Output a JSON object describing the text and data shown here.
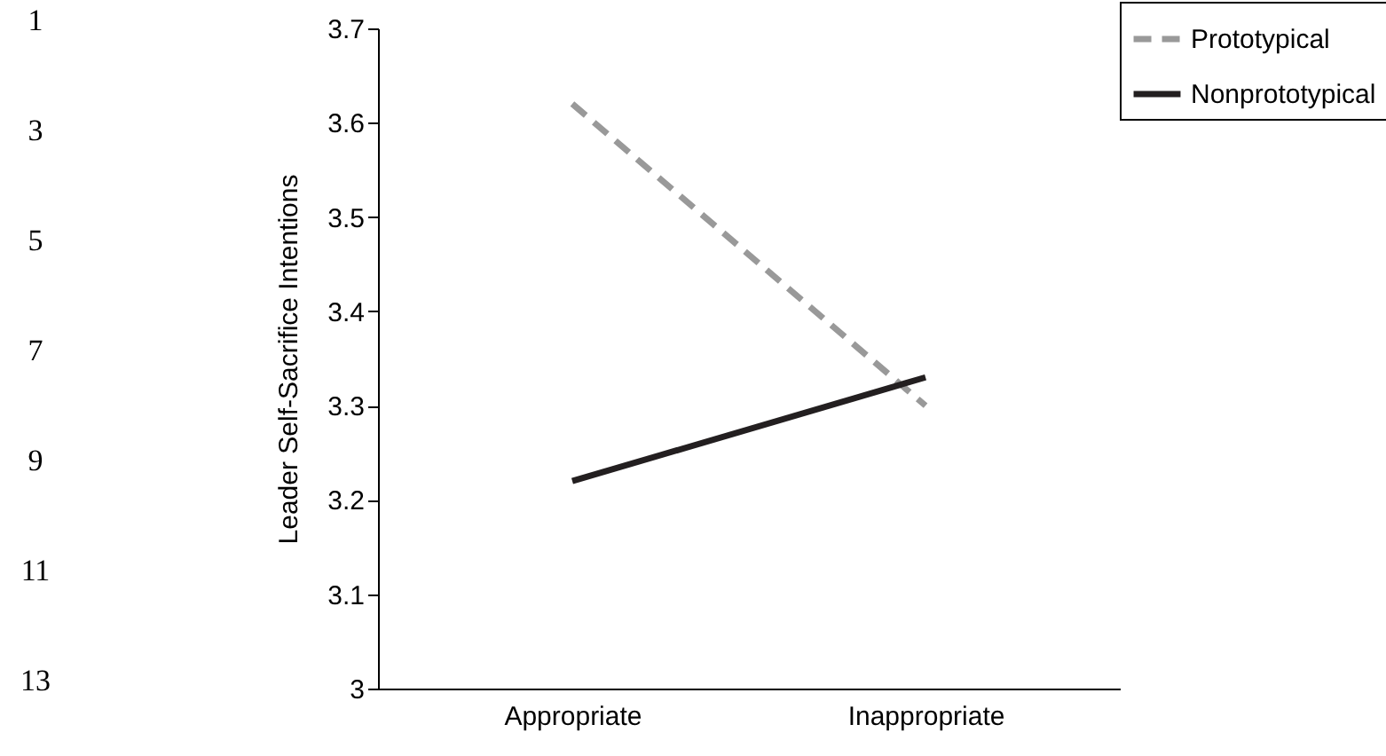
{
  "chart_data": {
    "type": "line",
    "ylabel": "Leader Self-Sacrifice Intentions",
    "categories": [
      "Appropriate",
      "Inappropriate"
    ],
    "series": [
      {
        "name": "Prototypical",
        "color": "#999999",
        "line_style": "dashed",
        "values": [
          3.62,
          3.3
        ]
      },
      {
        "name": "Nonprototypical",
        "color": "#231f20",
        "line_style": "solid",
        "values": [
          3.22,
          3.33
        ]
      }
    ],
    "ylim": [
      3,
      3.7
    ],
    "yticks": [
      {
        "value": 3,
        "label": "3"
      },
      3.1,
      3.2,
      3.3,
      3.4,
      3.5,
      3.6,
      3.7
    ],
    "legend": "top right",
    "grid": false,
    "marker": "none",
    "annotations": [
      "1",
      "3",
      "5",
      "7",
      "9",
      "11",
      "13"
    ]
  }
}
